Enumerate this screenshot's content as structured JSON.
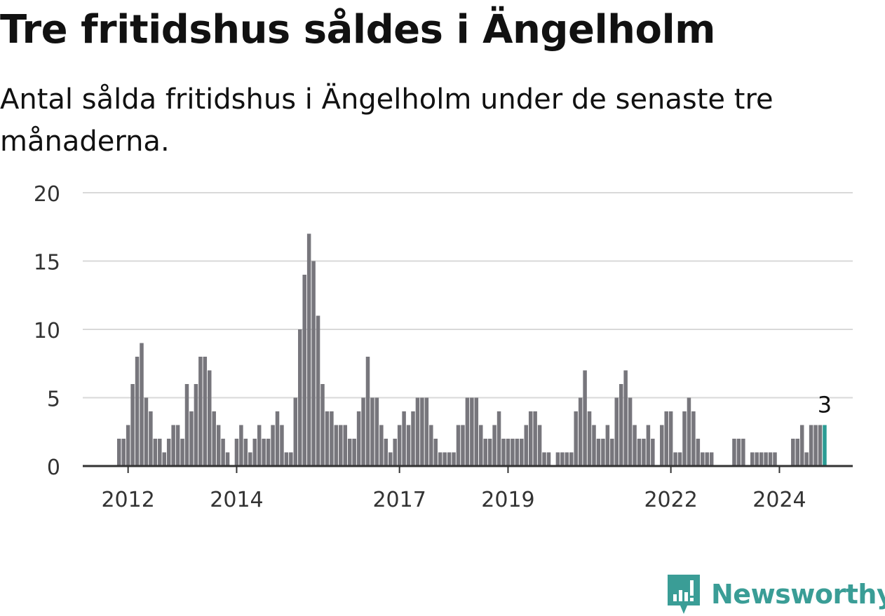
{
  "header": {
    "title": "Tre fritidshus såldes i Ängelholm",
    "subtitle": "Antal sålda fritidshus i Ängelholm under de senaste tre månaderna."
  },
  "chart_data": {
    "type": "bar",
    "title": "Tre fritidshus såldes i Ängelholm",
    "subtitle": "Antal sålda fritidshus i Ängelholm under de senaste tre månaderna.",
    "start": "2011-11",
    "ylim": [
      0,
      20
    ],
    "y_ticks": [
      0,
      5,
      10,
      15,
      20
    ],
    "x_tick_labels": [
      {
        "label": "2012",
        "month": "2012-01"
      },
      {
        "label": "2014",
        "month": "2014-01"
      },
      {
        "label": "2017",
        "month": "2017-01"
      },
      {
        "label": "2019",
        "month": "2019-01"
      },
      {
        "label": "2022",
        "month": "2022-01"
      },
      {
        "label": "2024",
        "month": "2024-01"
      }
    ],
    "values": [
      2,
      2,
      3,
      6,
      8,
      9,
      5,
      4,
      2,
      2,
      1,
      2,
      3,
      3,
      2,
      6,
      4,
      6,
      8,
      8,
      7,
      4,
      3,
      2,
      1,
      0,
      2,
      3,
      2,
      1,
      2,
      3,
      2,
      2,
      3,
      4,
      3,
      1,
      1,
      5,
      10,
      14,
      17,
      15,
      11,
      6,
      4,
      4,
      3,
      3,
      3,
      2,
      2,
      4,
      5,
      8,
      5,
      5,
      3,
      2,
      1,
      2,
      3,
      4,
      3,
      4,
      5,
      5,
      5,
      3,
      2,
      1,
      1,
      1,
      1,
      3,
      3,
      5,
      5,
      5,
      3,
      2,
      2,
      3,
      4,
      2,
      2,
      2,
      2,
      2,
      3,
      4,
      4,
      3,
      1,
      1,
      0,
      1,
      1,
      1,
      1,
      4,
      5,
      7,
      4,
      3,
      2,
      2,
      3,
      2,
      5,
      6,
      7,
      5,
      3,
      2,
      2,
      3,
      2,
      0,
      3,
      4,
      4,
      1,
      1,
      4,
      5,
      4,
      2,
      1,
      1,
      1,
      0,
      0,
      0,
      0,
      2,
      2,
      2,
      0,
      1,
      1,
      1,
      1,
      1,
      1,
      0,
      0,
      0,
      2,
      2,
      3,
      1,
      3,
      3,
      3,
      3
    ],
    "highlight_label": "3",
    "colors": {
      "bar": "#77767c",
      "highlight": "#2b9c94",
      "grid": "#d9d9d9",
      "axis": "#333333"
    }
  },
  "brand": {
    "name": "Newsworthy",
    "icon": "newsworthy-logo-icon",
    "color": "#3a9d96"
  }
}
